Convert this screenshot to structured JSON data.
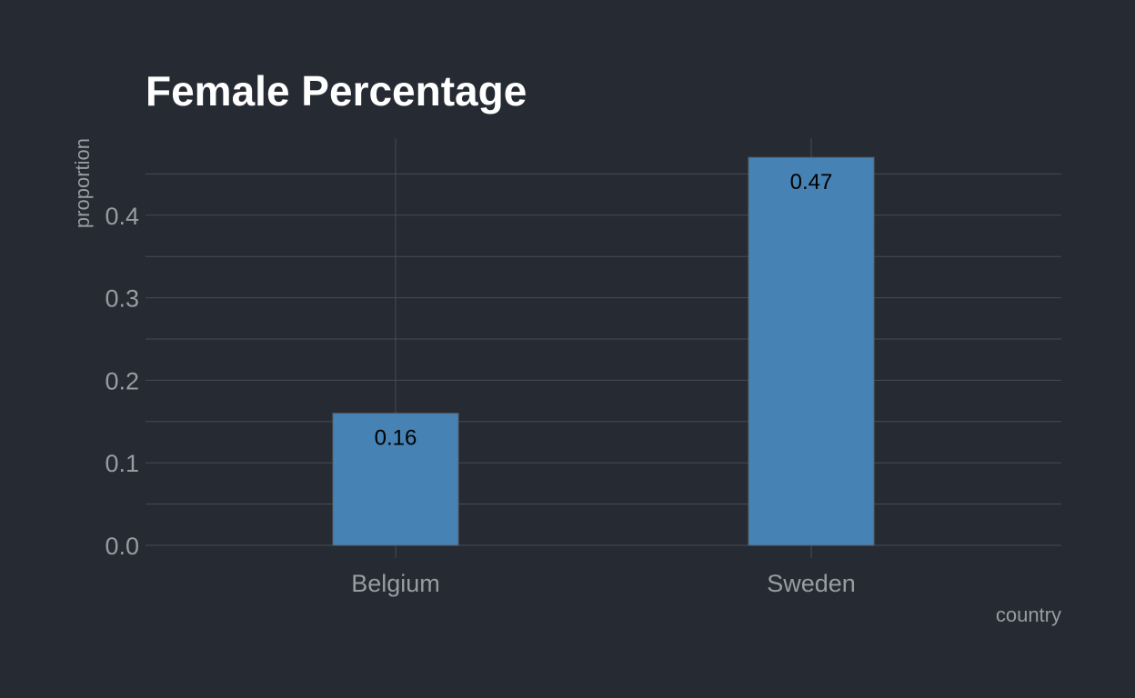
{
  "chart_data": {
    "type": "bar",
    "title": "Female Percentage",
    "xlabel": "country",
    "ylabel": "proportion",
    "categories": [
      "Belgium",
      "Sweden"
    ],
    "values": [
      0.16,
      0.47
    ],
    "data_labels": [
      "0.16",
      "0.47"
    ],
    "yticks": [
      0.0,
      0.1,
      0.2,
      0.3,
      0.4
    ],
    "ytick_labels": [
      "0.0",
      "0.1",
      "0.2",
      "0.3",
      "0.4"
    ],
    "ylim": [
      0,
      0.5
    ],
    "grid": true,
    "legend": "none",
    "colors": {
      "background": "#262a33",
      "bar_fill": "#4682b4",
      "grid": "#474b53",
      "title": "#ffffff",
      "tick_text": "#9a9ca1",
      "bar_label": "#000000"
    }
  }
}
